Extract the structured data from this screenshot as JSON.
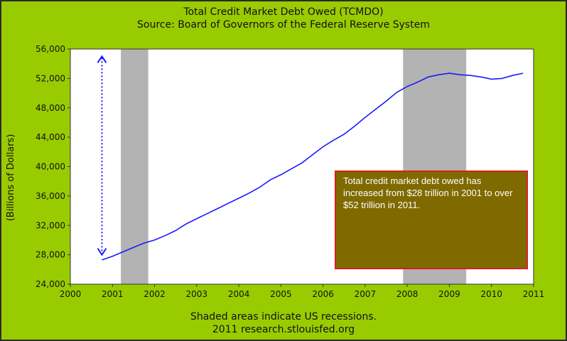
{
  "header": {
    "title": "Total Credit Market Debt Owed (TCMDO)",
    "subtitle": "Source: Board of Governors of the Federal Reserve System"
  },
  "footer": {
    "note": "Shaded areas indicate US recessions.",
    "source": "2011 research.stlouisfed.org"
  },
  "annotation": {
    "text": "Total credit market debt owed has increased from $28 trillion in 2001 to over $52 trillion in 2011."
  },
  "colors": {
    "background": "#99cc00",
    "plot": "#ffffff",
    "line": "#1a1aff",
    "recession": "#b3b3b3",
    "annotation_fill": "#7f6a00",
    "annotation_border": "#d62020"
  },
  "chart_data": {
    "type": "line",
    "title": "Total Credit Market Debt Owed (TCMDO)",
    "ylabel": "(Billions of Dollars)",
    "xlabel": "",
    "xlim": [
      2000,
      2011
    ],
    "ylim": [
      24000,
      56000
    ],
    "x_ticks": [
      2000,
      2001,
      2002,
      2003,
      2004,
      2005,
      2006,
      2007,
      2008,
      2009,
      2010,
      2011
    ],
    "y_ticks": [
      "24,000",
      "28,000",
      "32,000",
      "36,000",
      "40,000",
      "44,000",
      "48,000",
      "52,000",
      "56,000"
    ],
    "y_tick_values": [
      24000,
      28000,
      32000,
      36000,
      40000,
      44000,
      48000,
      52000,
      56000
    ],
    "grid": false,
    "recessions": [
      {
        "start": 2001.2,
        "end": 2001.85
      },
      {
        "start": 2007.9,
        "end": 2009.4
      }
    ],
    "double_arrow": {
      "x": 2000.75,
      "y_from": 28000,
      "y_to": 55000
    },
    "series": [
      {
        "x": [
          2000.75,
          2001.0,
          2001.25,
          2001.5,
          2001.75,
          2002.0,
          2002.25,
          2002.5,
          2002.75,
          2003.0,
          2003.25,
          2003.5,
          2003.75,
          2004.0,
          2004.25,
          2004.5,
          2004.75,
          2005.0,
          2005.25,
          2005.5,
          2005.75,
          2006.0,
          2006.25,
          2006.5,
          2006.75,
          2007.0,
          2007.25,
          2007.5,
          2007.75,
          2008.0,
          2008.25,
          2008.5,
          2008.75,
          2009.0,
          2009.25,
          2009.5,
          2009.75,
          2010.0,
          2010.25,
          2010.5,
          2010.75
        ],
        "values": [
          27300,
          27800,
          28400,
          29000,
          29600,
          30000,
          30600,
          31300,
          32200,
          32900,
          33600,
          34300,
          35000,
          35700,
          36400,
          37200,
          38200,
          38900,
          39700,
          40500,
          41600,
          42700,
          43600,
          44400,
          45500,
          46700,
          47800,
          48900,
          50100,
          50900,
          51500,
          52200,
          52500,
          52700,
          52500,
          52400,
          52200,
          51900,
          52000,
          52400,
          52700
        ]
      }
    ]
  }
}
